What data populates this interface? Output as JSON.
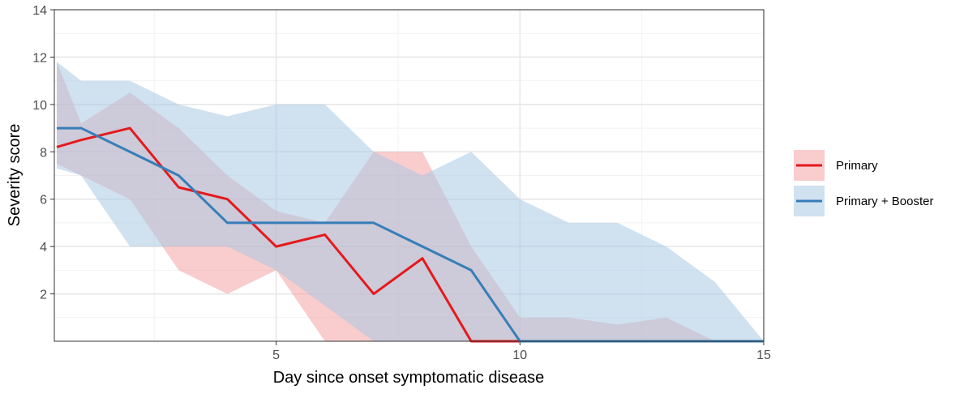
{
  "chart_data": {
    "type": "ribbon-line",
    "x_label": "Day since onset symptomatic disease",
    "y_label": "Severity score",
    "x": [
      0.5,
      1,
      2,
      3,
      4,
      5,
      6,
      7,
      8,
      9,
      10,
      11,
      12,
      13,
      14,
      15
    ],
    "series": [
      {
        "name": "Primary",
        "color": "#e41a1c",
        "ribbon_color": "#f4a3a4",
        "values": [
          8.2,
          8.5,
          9,
          6.5,
          6,
          4,
          4.5,
          2,
          3.5,
          0,
          0,
          0,
          0,
          0,
          0,
          0
        ],
        "upper": [
          11.8,
          9.2,
          10.5,
          9,
          7,
          5.5,
          5,
          8,
          8,
          4,
          1,
          1,
          0.7,
          1,
          0,
          0
        ],
        "lower": [
          7.5,
          7,
          6,
          3,
          2,
          3,
          0,
          0,
          0,
          0,
          0,
          0,
          0,
          0,
          0,
          0
        ]
      },
      {
        "name": "Primary + Booster",
        "color": "#377eb8",
        "ribbon_color": "#a9c8e3",
        "values": [
          9,
          9,
          8,
          7,
          5,
          5,
          5,
          5,
          4,
          3,
          0,
          0,
          0,
          0,
          0,
          0
        ],
        "upper": [
          11.8,
          11,
          11,
          10,
          9.5,
          10,
          10,
          8,
          7,
          8,
          6,
          5,
          5,
          4,
          2.5,
          0
        ],
        "lower": [
          7.3,
          7,
          4,
          4,
          4,
          3,
          1.5,
          0,
          0,
          0,
          0,
          0,
          0,
          0,
          0,
          0
        ]
      }
    ],
    "xlim": [
      0.45,
      15
    ],
    "ylim": [
      0,
      14
    ],
    "xticks": [
      5,
      10,
      15
    ],
    "yticks": [
      2,
      4,
      6,
      8,
      10,
      12,
      14
    ],
    "x_minor_ticks": [
      2.5,
      7.5,
      12.5
    ],
    "y_minor_ticks": [
      1,
      3,
      5,
      7,
      9,
      11,
      13
    ],
    "grid": true,
    "legend": "right"
  }
}
